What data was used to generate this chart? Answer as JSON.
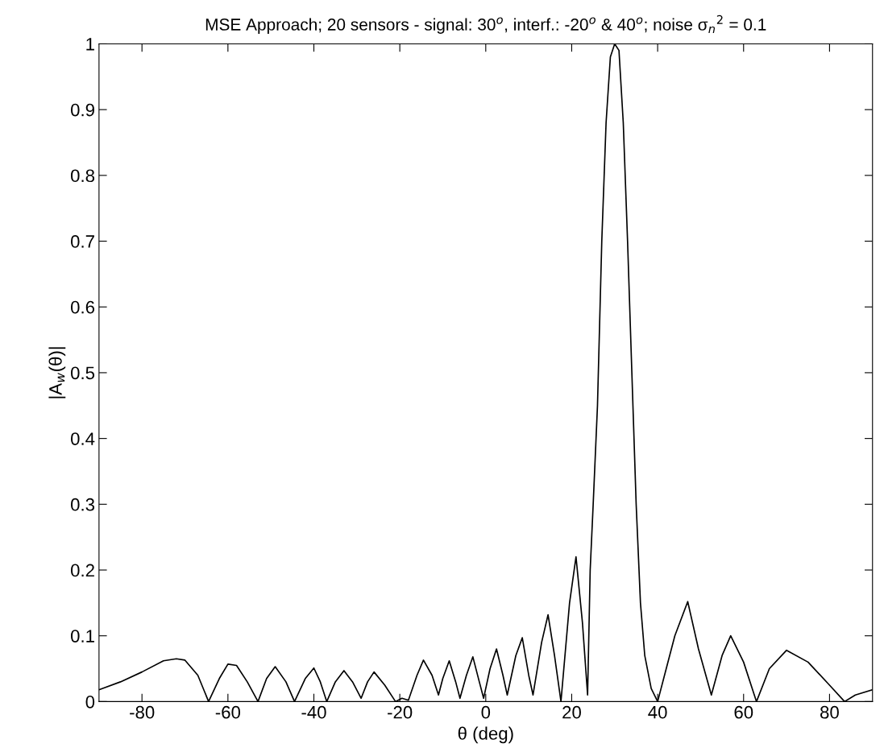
{
  "chart_data": {
    "type": "line",
    "title": "MSE Approach; 20 sensors - signal: 30$^{o}$, interf.: -20$^{o}$ & 40$^{o}$; noise σ$_{n}$$^{2}$ = 0.1",
    "xlabel": "θ (deg)",
    "ylabel": "|A$_{w}$(θ)|",
    "series": [
      {
        "color": "#000000",
        "x": [
          -90,
          -85,
          -80,
          -75,
          -72,
          -70,
          -67,
          -64.5,
          -62,
          -60,
          -58,
          -55.5,
          -53,
          -51,
          -49,
          -46.5,
          -44.5,
          -42,
          -40,
          -38.5,
          -37,
          -35,
          -33,
          -31,
          -29,
          -27.5,
          -26,
          -23.5,
          -21,
          -19.5,
          -18,
          -16,
          -14.5,
          -12.5,
          -11,
          -10,
          -8.5,
          -7,
          -6,
          -4.5,
          -3,
          -1.5,
          -0.5,
          1,
          2.5,
          4,
          5,
          7,
          8.5,
          10,
          11,
          13,
          14.5,
          16,
          17.5,
          19.5,
          21,
          22.5,
          23.7,
          24.3,
          25,
          26,
          27,
          28,
          29,
          30,
          31,
          32,
          33,
          34,
          35,
          36,
          37,
          38.5,
          40,
          42,
          44,
          47,
          49.5,
          52.5,
          55,
          57,
          60,
          63,
          66,
          70,
          75,
          80,
          83.5,
          86,
          90
        ],
        "values": [
          0.018,
          0.03,
          0.045,
          0.062,
          0.065,
          0.063,
          0.04,
          0.0,
          0.035,
          0.057,
          0.055,
          0.03,
          0.0,
          0.035,
          0.053,
          0.03,
          0.0,
          0.035,
          0.051,
          0.03,
          0.0,
          0.03,
          0.047,
          0.03,
          0.005,
          0.03,
          0.045,
          0.025,
          0.0,
          0.005,
          0.002,
          0.04,
          0.063,
          0.04,
          0.01,
          0.035,
          0.062,
          0.03,
          0.005,
          0.04,
          0.068,
          0.03,
          0.005,
          0.05,
          0.08,
          0.04,
          0.01,
          0.07,
          0.097,
          0.04,
          0.01,
          0.09,
          0.132,
          0.07,
          0.0,
          0.15,
          0.22,
          0.12,
          0.01,
          0.2,
          0.3,
          0.45,
          0.7,
          0.88,
          0.98,
          1.0,
          0.99,
          0.88,
          0.7,
          0.5,
          0.3,
          0.15,
          0.07,
          0.02,
          0.0,
          0.05,
          0.1,
          0.152,
          0.08,
          0.01,
          0.07,
          0.1,
          0.06,
          0.0,
          0.05,
          0.078,
          0.06,
          0.025,
          0.0,
          0.01,
          0.018
        ]
      }
    ],
    "xlim": [
      -90,
      90
    ],
    "ylim": [
      0,
      1
    ],
    "xticks": [
      -80,
      -60,
      -40,
      -20,
      0,
      20,
      40,
      60,
      80
    ],
    "yticks": [
      0,
      0.1,
      0.2,
      0.3,
      0.4,
      0.5,
      0.6,
      0.7,
      0.8,
      0.9,
      1
    ],
    "grid": false,
    "legend": false
  }
}
